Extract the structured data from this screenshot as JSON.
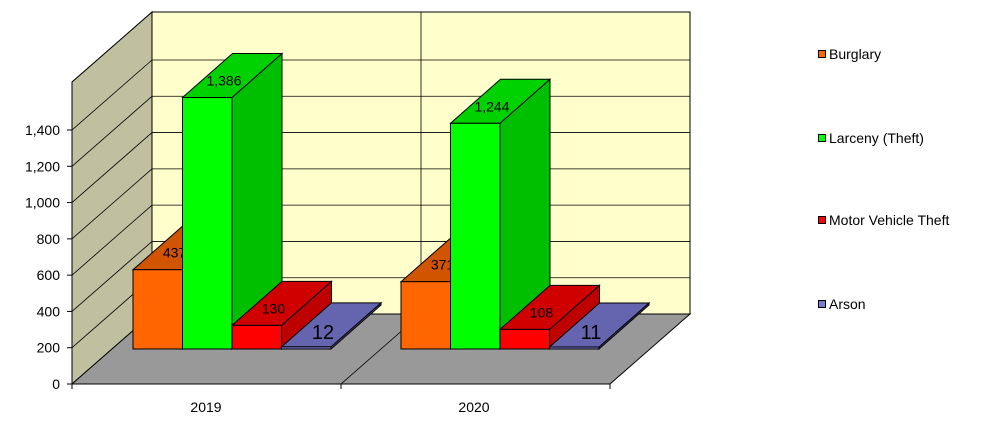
{
  "chart_data": {
    "type": "bar",
    "categories": [
      "2019",
      "2020"
    ],
    "series": [
      {
        "name": "Burglary",
        "values": [
          437,
          371
        ],
        "labels": [
          "437",
          "371"
        ],
        "color": "#ff6600"
      },
      {
        "name": "Larceny (Theft)",
        "values": [
          1386,
          1244
        ],
        "labels": [
          "1,386",
          "1,244"
        ],
        "color": "#00ff00"
      },
      {
        "name": "Motor Vehicle Theft",
        "values": [
          130,
          108
        ],
        "labels": [
          "130",
          "108"
        ],
        "color": "#ff0000"
      },
      {
        "name": "Arson",
        "values": [
          12,
          11
        ],
        "labels": [
          "12",
          "11"
        ],
        "color": "#7b7bd6"
      }
    ],
    "ylim": [
      0,
      1400
    ],
    "yticks": [
      "0",
      "200",
      "400",
      "600",
      "800",
      "1,000",
      "1,200",
      "1,400"
    ],
    "title": "",
    "xlabel": "",
    "ylabel": "",
    "legend_position": "right",
    "three_d": true,
    "wall_color": "#ffffcc",
    "side_wall_color": "#c0c0a0",
    "floor_color": "#999999"
  }
}
